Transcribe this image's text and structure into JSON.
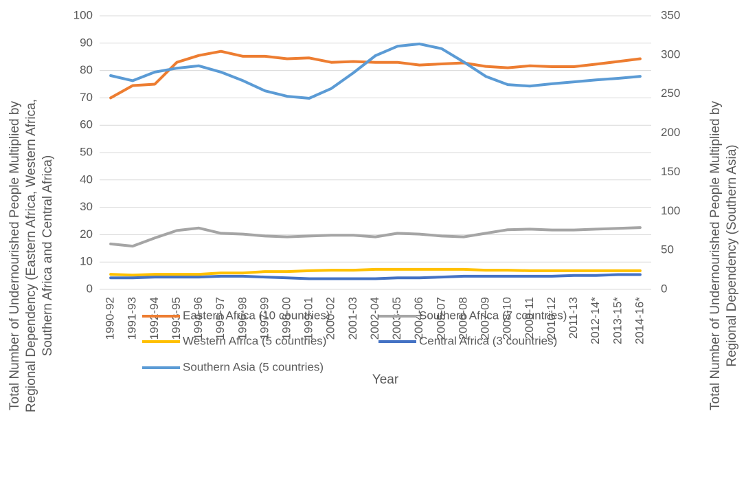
{
  "chart_data": {
    "type": "line",
    "xlabel": "Year",
    "ylabel": [
      "Total Number of Undernourished People Multiplied by",
      "Regional Dependency (Eastern Africa, Western Africa,",
      "Southern Africa and Central Africa)"
    ],
    "y2label": [
      "Total Number of Undernourished People Multiplied by",
      "Regional Dependency (Southern Asia)"
    ],
    "categories": [
      "1990-92",
      "1991-93",
      "1992-94",
      "1993-95",
      "1994-96",
      "1995-97",
      "1996-98",
      "1997-99",
      "1998-00",
      "1999-01",
      "2000-02",
      "2001-03",
      "2002-04",
      "2003-05",
      "2004-06",
      "2005-07",
      "2006-08",
      "2007-09",
      "2008-10",
      "2009-11",
      "2010-12",
      "2011-13",
      "2012-14*",
      "2013-15*",
      "2014-16*"
    ],
    "ylim": [
      0,
      100
    ],
    "yticks": [
      0,
      10,
      20,
      30,
      40,
      50,
      60,
      70,
      80,
      90,
      100
    ],
    "y2lim": [
      0,
      350
    ],
    "y2ticks": [
      0,
      50,
      100,
      150,
      200,
      250,
      300,
      350
    ],
    "grid": true,
    "series": [
      {
        "name": "Eastern Africa (10 countries)",
        "color": "#ED7D31",
        "values": [
          70,
          74.5,
          75,
          83,
          85.5,
          87,
          85.2,
          85.2,
          84.3,
          84.6,
          83,
          83.3,
          83,
          83,
          82,
          82.4,
          82.8,
          81.5,
          81,
          81.7,
          81.4,
          81.4,
          82.3,
          83.3,
          84.3
        ]
      },
      {
        "name": "Southern Africa (7 countries)",
        "color": "#A5A5A5",
        "values": [
          16.6,
          15.8,
          18.8,
          21.5,
          22.4,
          20.5,
          20.2,
          19.5,
          19.2,
          19.5,
          19.8,
          19.8,
          19.2,
          20.5,
          20.2,
          19.5,
          19.2,
          20.5,
          21.8,
          22,
          21.7,
          21.7,
          22,
          22.3,
          22.6
        ]
      },
      {
        "name": "Western Africa (5 countries)",
        "color": "#FFC000",
        "values": [
          5.5,
          5.2,
          5.5,
          5.5,
          5.5,
          6,
          6,
          6.5,
          6.5,
          6.8,
          7,
          7,
          7.3,
          7.3,
          7.3,
          7.3,
          7.3,
          7,
          7,
          6.8,
          6.8,
          6.8,
          6.8,
          6.8,
          6.8
        ]
      },
      {
        "name": "Central Africa (3 countries)",
        "color": "#4472C4",
        "values": [
          4.2,
          4.2,
          4.5,
          4.5,
          4.5,
          4.8,
          4.8,
          4.5,
          4.2,
          3.9,
          3.9,
          3.9,
          3.9,
          4.2,
          4.2,
          4.5,
          4.8,
          4.8,
          4.8,
          4.8,
          4.8,
          5.1,
          5.1,
          5.4,
          5.4
        ]
      },
      {
        "name": "Southern Asia (5 countries)",
        "color": "#5B9BD5",
        "axis": "y2",
        "values": [
          273.5,
          267,
          278,
          283,
          286,
          278,
          267,
          254,
          247,
          244.5,
          257,
          277,
          299,
          311,
          314,
          308,
          291,
          272.5,
          262,
          260,
          263,
          265.5,
          268,
          270,
          272.5
        ]
      }
    ]
  }
}
